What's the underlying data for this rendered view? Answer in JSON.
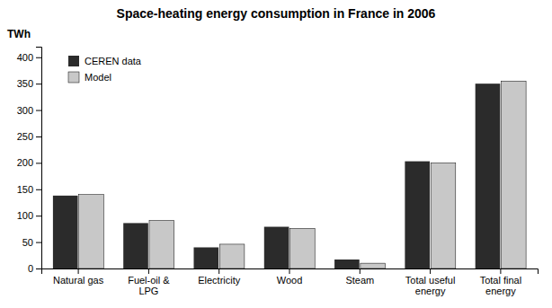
{
  "chart_data": {
    "type": "bar",
    "title": "Space-heating energy consumption in France in 2006",
    "ylabel": "TWh",
    "categories": [
      "Natural gas",
      "Fuel-oil &\nLPG",
      "Electricity",
      "Wood",
      "Steam",
      "Total useful\nenergy",
      "Total final\nenergy"
    ],
    "series": [
      {
        "name": "CEREN data",
        "color": "#2b2b2b",
        "values": [
          138,
          86,
          40,
          79,
          17,
          203,
          350
        ]
      },
      {
        "name": "Model",
        "color": "#c8c8c8",
        "values": [
          140,
          91,
          46,
          76,
          10,
          200,
          355
        ]
      }
    ],
    "ylim": [
      0,
      420
    ],
    "yticks": [
      0,
      50,
      100,
      150,
      200,
      250,
      300,
      350,
      400
    ],
    "grid": false,
    "legend": "upper left"
  }
}
